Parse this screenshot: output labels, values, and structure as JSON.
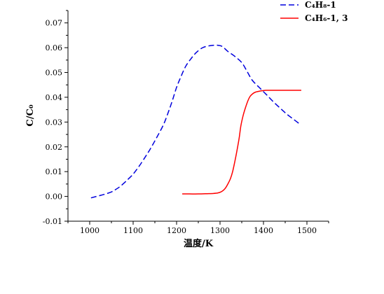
{
  "chart_data": {
    "type": "line",
    "title": "",
    "xlabel": "温度/K",
    "ylabel": "C/C₀",
    "xlim": [
      950,
      1550
    ],
    "ylim": [
      -0.01,
      0.075
    ],
    "xticks": [
      1000,
      1100,
      1200,
      1300,
      1400,
      1500
    ],
    "xtick_labels": [
      "1000",
      "1100",
      "1200",
      "1300",
      "1400",
      "1500"
    ],
    "yticks": [
      -0.01,
      0.0,
      0.01,
      0.02,
      0.03,
      0.04,
      0.05,
      0.06,
      0.07
    ],
    "ytick_labels": [
      "-0.01",
      "0.00",
      "0.01",
      "0.02",
      "0.03",
      "0.04",
      "0.05",
      "0.06",
      "0.07"
    ],
    "grid": false,
    "legend_position": "top-right",
    "series": [
      {
        "name": "C₄H₈-1",
        "color": "#0000dd",
        "style": "dashed",
        "x": [
          1003,
          1020,
          1035,
          1050,
          1060,
          1070,
          1081,
          1090,
          1100,
          1115,
          1130,
          1140,
          1155,
          1170,
          1181,
          1190,
          1200,
          1210,
          1221,
          1233,
          1245,
          1260,
          1277,
          1294,
          1305,
          1318,
          1334,
          1350,
          1362,
          1374,
          1390,
          1406,
          1422,
          1439,
          1455,
          1470,
          1485
        ],
        "y": [
          -0.0006,
          0.0002,
          0.0009,
          0.0018,
          0.0028,
          0.004,
          0.0057,
          0.0072,
          0.009,
          0.0125,
          0.0165,
          0.0193,
          0.024,
          0.029,
          0.034,
          0.0385,
          0.044,
          0.0483,
          0.0525,
          0.0555,
          0.058,
          0.06,
          0.0608,
          0.061,
          0.0605,
          0.0585,
          0.0565,
          0.054,
          0.0505,
          0.0469,
          0.044,
          0.0412,
          0.0383,
          0.0355,
          0.033,
          0.031,
          0.029
        ]
      },
      {
        "name": "C₄H₆-1, 3",
        "color": "#ff0000",
        "style": "solid",
        "x": [
          1213,
          1230,
          1250,
          1270,
          1285,
          1295,
          1302,
          1308,
          1313,
          1318,
          1324,
          1329,
          1334,
          1339,
          1344,
          1348,
          1353,
          1358,
          1364,
          1369,
          1375,
          1382,
          1392,
          1406,
          1425,
          1450,
          1487
        ],
        "y": [
          0.001,
          0.001,
          0.001,
          0.0011,
          0.0012,
          0.0014,
          0.0018,
          0.0025,
          0.0035,
          0.005,
          0.0072,
          0.01,
          0.014,
          0.0185,
          0.0235,
          0.0285,
          0.0325,
          0.0355,
          0.0385,
          0.0403,
          0.0414,
          0.0421,
          0.0425,
          0.0428,
          0.0428,
          0.0428,
          0.0428
        ]
      }
    ]
  }
}
